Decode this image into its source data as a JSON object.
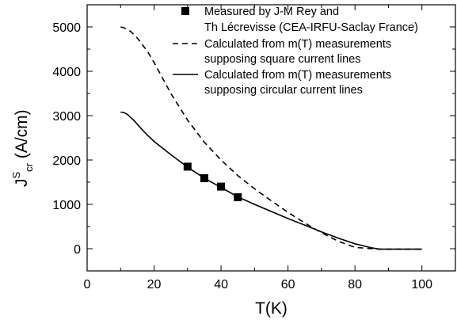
{
  "chart_data": {
    "type": "line",
    "xlabel": "T(K)",
    "ylabel": {
      "main": "J",
      "sup": "S",
      "sub": "cr",
      "unit": " (A/cm)"
    },
    "xlim": [
      0,
      110
    ],
    "ylim": [
      -500,
      5500
    ],
    "xticks": [
      0,
      20,
      40,
      60,
      80,
      100
    ],
    "yticks": [
      0,
      1000,
      2000,
      3000,
      4000,
      5000
    ],
    "grid": false,
    "legend_position": "top-right",
    "series": [
      {
        "name": "Measured by J-M Rey and",
        "name_line2": "Th Lécrevisse (CEA-IRFU-Saclay France)",
        "style": "markers",
        "marker": "square",
        "x": [
          30,
          35,
          40,
          45
        ],
        "y": [
          1850,
          1590,
          1400,
          1160
        ]
      },
      {
        "name": "Calculated from m(T) measurements",
        "name_line2": " supposing square current lines",
        "style": "dashed",
        "x": [
          10,
          11,
          13,
          15,
          18,
          20,
          25,
          30,
          35,
          40,
          45,
          50,
          55,
          60,
          65,
          70,
          75,
          80,
          85,
          87,
          88,
          89,
          90,
          92,
          95,
          100
        ],
        "y": [
          5000,
          4980,
          4900,
          4750,
          4450,
          4200,
          3500,
          2900,
          2400,
          2000,
          1650,
          1350,
          1080,
          820,
          580,
          360,
          170,
          30,
          0,
          -10,
          -10,
          -10,
          -10,
          -10,
          -10,
          -10
        ]
      },
      {
        "name": "Calculated from m(T) measurements",
        "name_line2": " supposing circular current lines",
        "style": "solid",
        "x": [
          10,
          11,
          12,
          14,
          16,
          18,
          20,
          25,
          30,
          35,
          40,
          45,
          50,
          55,
          60,
          65,
          70,
          75,
          80,
          85,
          87,
          88,
          89,
          90,
          92,
          95,
          100
        ],
        "y": [
          3080,
          3070,
          3030,
          2890,
          2720,
          2560,
          2420,
          2120,
          1840,
          1590,
          1380,
          1170,
          1000,
          840,
          680,
          530,
          380,
          240,
          110,
          20,
          -5,
          -10,
          -10,
          -10,
          -10,
          -10,
          -10
        ]
      }
    ]
  }
}
